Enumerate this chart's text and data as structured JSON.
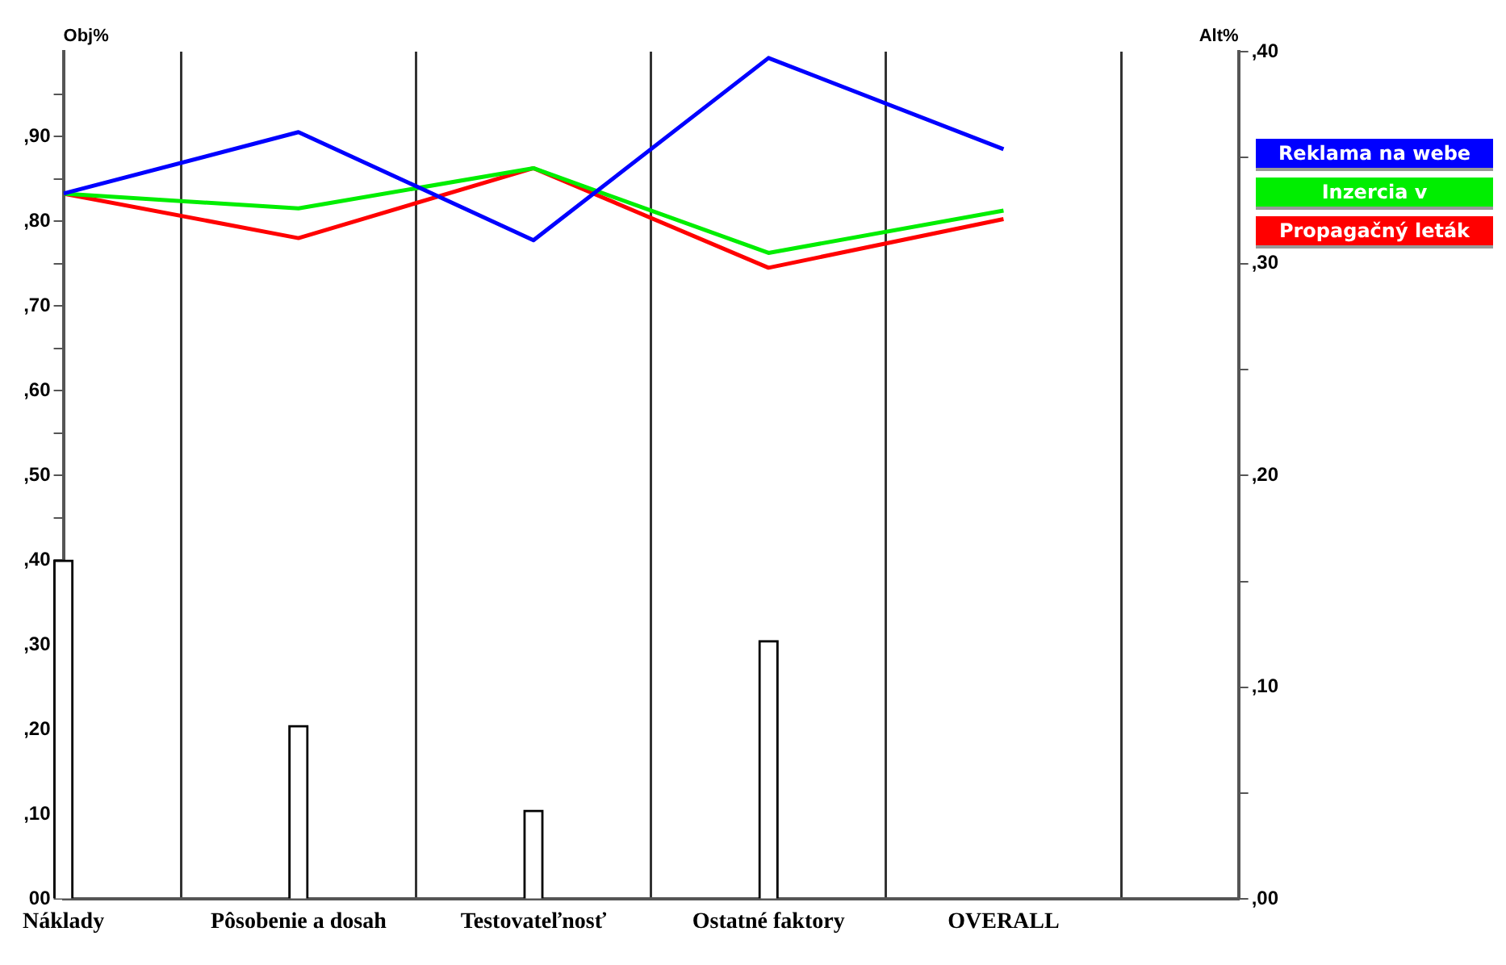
{
  "chart_data": {
    "type": "bar",
    "categories": [
      "Náklady",
      "Pôsobenie a dosah",
      "Testovateľnosť",
      "Ostatné faktory",
      "OVERALL"
    ],
    "ylabel": "Obj%",
    "y2label": "Alt%",
    "grid": "x",
    "legend": "right",
    "marker": "none",
    "line_style": "solid",
    "series": [
      {
        "color": "#ffffff",
        "values": [
          40,
          20.5,
          10.5,
          30.5,
          null
        ]
      },
      {
        "type": "line",
        "axis": "y2",
        "name": "Reklama na webe",
        "color": "#0000ff",
        "values": [
          33.3,
          36.2,
          31.1,
          39.7,
          35.4
        ]
      },
      {
        "type": "line",
        "axis": "y2",
        "name": "Inzercia v",
        "color": "#00ee00",
        "values": [
          33.3,
          32.6,
          34.5,
          30.5,
          32.5
        ]
      },
      {
        "type": "line",
        "axis": "y2",
        "name": "Propagačný leták",
        "color": "#ff0000",
        "values": [
          33.3,
          31.2,
          34.5,
          29.8,
          32.1
        ]
      }
    ],
    "ylim": [
      0,
      100
    ],
    "yticks": [
      {
        "value": 0,
        "label": "00"
      },
      {
        "value": 5,
        "label": null
      },
      {
        "value": 10,
        "label": ",10"
      },
      {
        "value": 15,
        "label": null
      },
      {
        "value": 20,
        "label": ",20"
      },
      {
        "value": 25,
        "label": null
      },
      {
        "value": 30,
        "label": ",30"
      },
      {
        "value": 35,
        "label": null
      },
      {
        "value": 40,
        "label": ",40"
      },
      {
        "value": 45,
        "label": null
      },
      {
        "value": 50,
        "label": ",50"
      },
      {
        "value": 55,
        "label": null
      },
      {
        "value": 60,
        "label": ",60"
      },
      {
        "value": 65,
        "label": null
      },
      {
        "value": 70,
        "label": ",70"
      },
      {
        "value": 75,
        "label": null
      },
      {
        "value": 80,
        "label": ",80"
      },
      {
        "value": 85,
        "label": null
      },
      {
        "value": 90,
        "label": ",90"
      },
      {
        "value": 95,
        "label": null
      }
    ],
    "y2lim": [
      0,
      40
    ],
    "y2ticks": [
      {
        "value": 0,
        "label": ",00"
      },
      {
        "value": 5,
        "label": null
      },
      {
        "value": 10,
        "label": ",10"
      },
      {
        "value": 15,
        "label": null
      },
      {
        "value": 20,
        "label": ",20"
      },
      {
        "value": 25,
        "label": null
      },
      {
        "value": 30,
        "label": ",30"
      },
      {
        "value": 35,
        "label": null
      },
      {
        "value": 40,
        "label": ",40"
      }
    ]
  }
}
